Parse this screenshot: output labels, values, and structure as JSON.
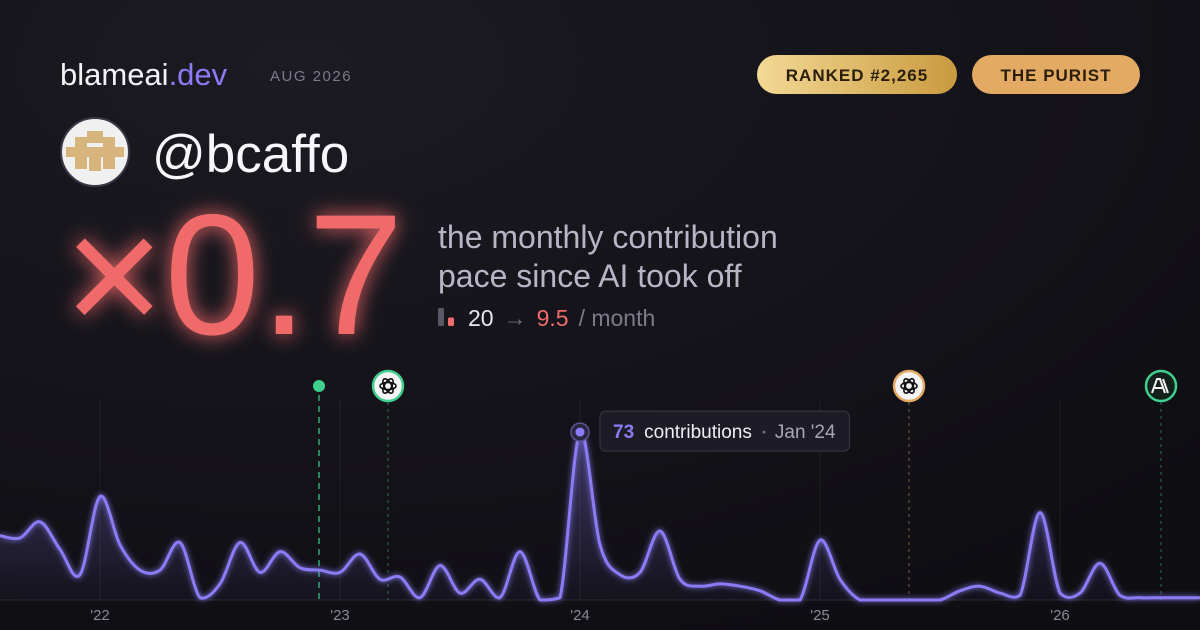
{
  "brand": {
    "name": "blameai",
    "tld": ".dev",
    "date": "AUG 2026"
  },
  "badges": [
    "RANKED #2,265",
    "THE PURIST"
  ],
  "user": {
    "handle": "@bcaffo"
  },
  "multiplier": "×0.7",
  "headline": [
    "the monthly contribution",
    "pace since AI took off"
  ],
  "pace": {
    "before": 20,
    "arrow": "→",
    "after": 9.5,
    "unit": "/ month"
  },
  "chart_data": {
    "type": "line",
    "x": [
      "Aug '21",
      "Sep '21",
      "Oct '21",
      "Nov '21",
      "Dec '21",
      "Jan '22",
      "Feb '22",
      "Mar '22",
      "Apr '22",
      "May '22",
      "Jun '22",
      "Jul '22",
      "Aug '22",
      "Sep '22",
      "Oct '22",
      "Nov '22",
      "Dec '22",
      "Jan '23",
      "Feb '23",
      "Mar '23",
      "Apr '23",
      "May '23",
      "Jun '23",
      "Jul '23",
      "Aug '23",
      "Sep '23",
      "Oct '23",
      "Nov '23",
      "Dec '23",
      "Jan '24",
      "Feb '24",
      "Mar '24",
      "Apr '24",
      "May '24",
      "Jun '24",
      "Jul '24",
      "Aug '24",
      "Sep '24",
      "Oct '24",
      "Nov '24",
      "Dec '24",
      "Jan '25",
      "Feb '25",
      "Mar '25",
      "Apr '25",
      "May '25",
      "Jun '25",
      "Jul '25",
      "Aug '25",
      "Sep '25",
      "Oct '25",
      "Nov '25",
      "Dec '25",
      "Jan '26",
      "Feb '26",
      "Mar '26",
      "Apr '26",
      "May '26",
      "Jun '26",
      "Jul '26",
      "Aug '26"
    ],
    "values": [
      28,
      27,
      34,
      22,
      11,
      45,
      24,
      13,
      13,
      25,
      1,
      7,
      25,
      12,
      21,
      14,
      13,
      12,
      20,
      9,
      10,
      1,
      15,
      3,
      9,
      1,
      21,
      0,
      1,
      73,
      24,
      11,
      12,
      30,
      9,
      6,
      7,
      6,
      4,
      0,
      0,
      26,
      9,
      0,
      0,
      0,
      0,
      0,
      4,
      6,
      3,
      2,
      38,
      3,
      3,
      16,
      2,
      1,
      1,
      1,
      1
    ],
    "color": "#8b7cf6",
    "ylim": [
      0,
      80
    ],
    "xticks": [
      {
        "value": "Jan '22",
        "label": "'22"
      },
      {
        "value": "Jan '23",
        "label": "'23"
      },
      {
        "value": "Jan '24",
        "label": "'24"
      },
      {
        "value": "Jan '25",
        "label": "'25"
      },
      {
        "value": "Jan '26",
        "label": "'26"
      }
    ],
    "tooltip": {
      "unit": "contributions"
    }
  }
}
